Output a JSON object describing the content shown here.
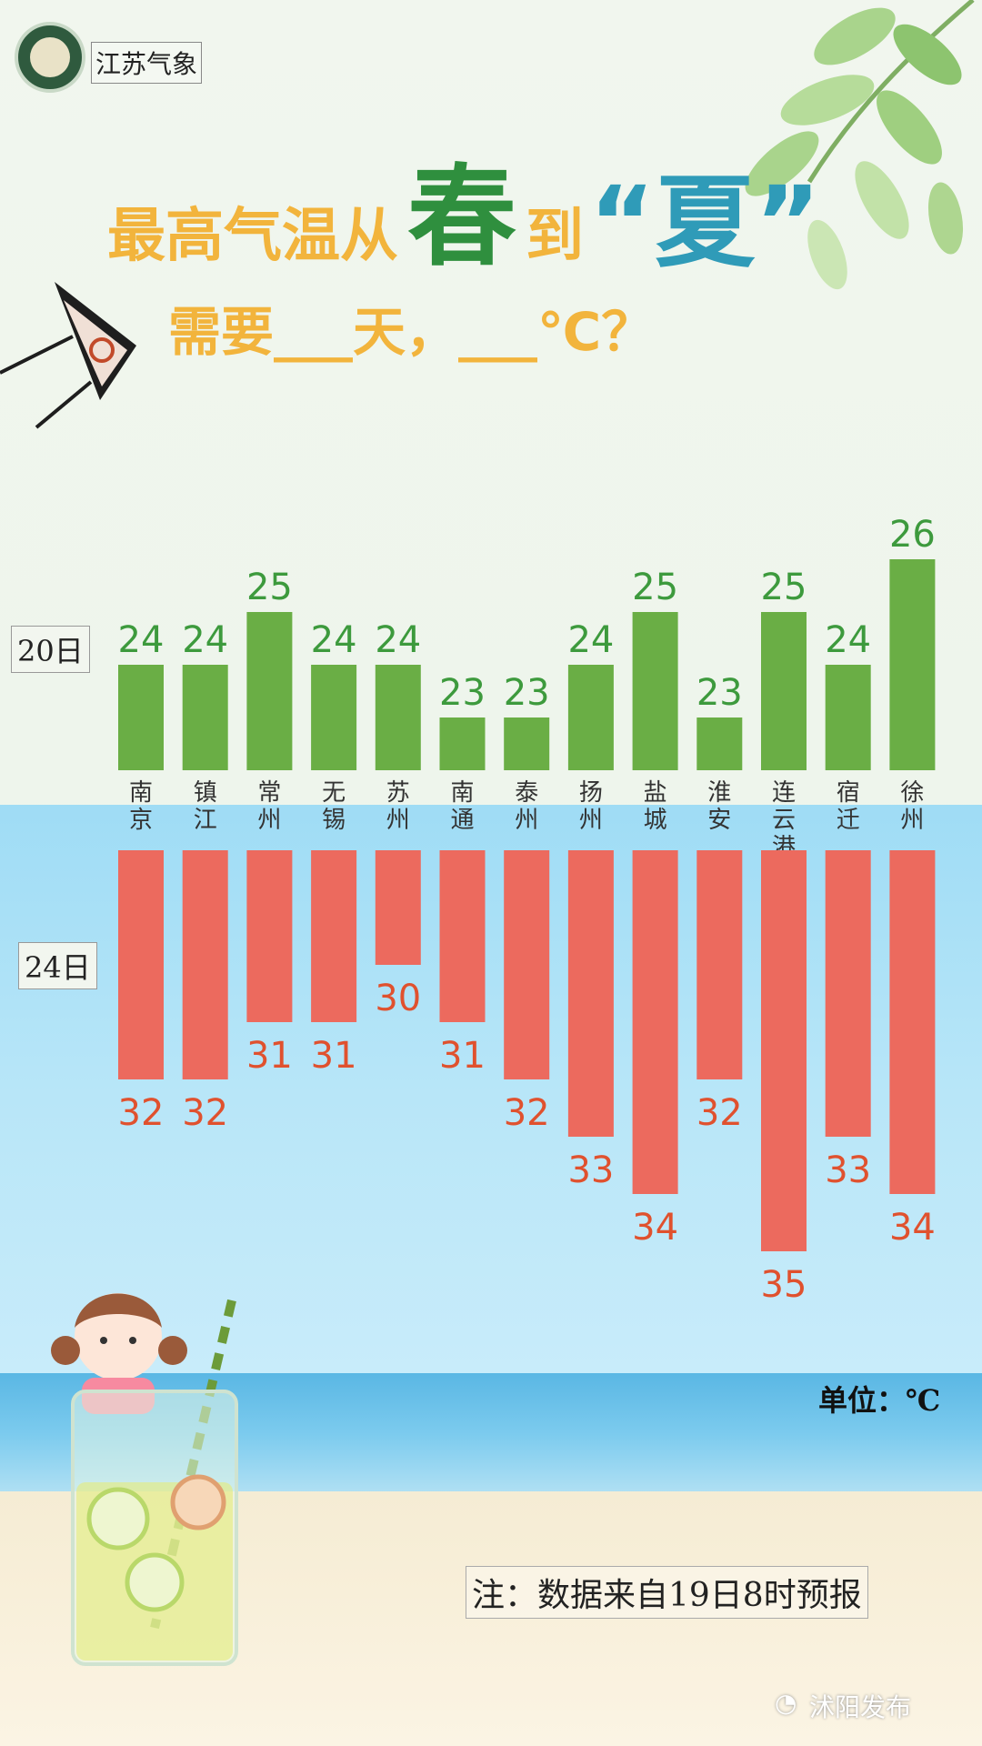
{
  "header": {
    "logo_name": "江苏气象",
    "title_line1": [
      "最高气温从",
      "春",
      "到",
      "“夏”"
    ],
    "title_line2": "需要___天，___℃？"
  },
  "chart_data": {
    "type": "bar",
    "categories": [
      "南京",
      "镇江",
      "常州",
      "无锡",
      "苏州",
      "南通",
      "泰州",
      "扬州",
      "盐城",
      "淮安",
      "连云港",
      "宿迁",
      "徐州"
    ],
    "series": [
      {
        "name": "20日",
        "values": [
          24,
          24,
          25,
          24,
          24,
          23,
          23,
          24,
          25,
          23,
          25,
          24,
          26
        ],
        "color": "#6aae45"
      },
      {
        "name": "24日",
        "values": [
          32,
          32,
          31,
          31,
          30,
          31,
          32,
          33,
          34,
          32,
          35,
          33,
          34
        ],
        "color": "#ec6a5e"
      }
    ],
    "label_colors": {
      "top": "#3d9a3d",
      "bottom": "#e0512e"
    }
  },
  "unit_label": "单位：℃",
  "note": "注：数据来自19日8时预报",
  "brand": "沭阳发布"
}
